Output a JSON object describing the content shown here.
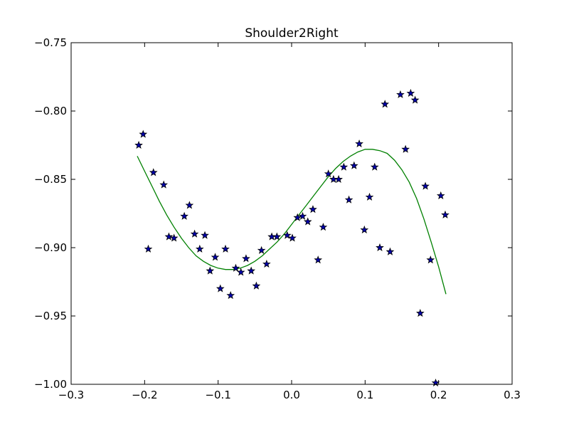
{
  "chart_data": {
    "type": "scatter",
    "title": "Shoulder2Right",
    "xlabel": "",
    "ylabel": "",
    "xlim": [
      -0.3,
      0.3
    ],
    "ylim": [
      -1.0,
      -0.75
    ],
    "xticks": [
      -0.3,
      -0.2,
      -0.1,
      0.0,
      0.1,
      0.2,
      0.3
    ],
    "yticks": [
      -1.0,
      -0.95,
      -0.9,
      -0.85,
      -0.8,
      -0.75
    ],
    "xtick_labels": [
      "−0.3",
      "−0.2",
      "−0.1",
      "0.0",
      "0.1",
      "0.2",
      "0.3"
    ],
    "ytick_labels": [
      "−1.00",
      "−0.95",
      "−0.90",
      "−0.85",
      "−0.80",
      "−0.75"
    ],
    "grid": false,
    "legend": "none",
    "series": [
      {
        "kind": "scatter",
        "marker": "star",
        "color": "#0000aa",
        "edge_color": "#000000",
        "points": [
          [
            -0.208,
            -0.825
          ],
          [
            -0.202,
            -0.817
          ],
          [
            -0.195,
            -0.901
          ],
          [
            -0.188,
            -0.845
          ],
          [
            -0.174,
            -0.854
          ],
          [
            -0.167,
            -0.892
          ],
          [
            -0.16,
            -0.893
          ],
          [
            -0.146,
            -0.877
          ],
          [
            -0.139,
            -0.869
          ],
          [
            -0.132,
            -0.89
          ],
          [
            -0.125,
            -0.901
          ],
          [
            -0.118,
            -0.891
          ],
          [
            -0.111,
            -0.917
          ],
          [
            -0.104,
            -0.907
          ],
          [
            -0.097,
            -0.93
          ],
          [
            -0.09,
            -0.901
          ],
          [
            -0.083,
            -0.935
          ],
          [
            -0.076,
            -0.915
          ],
          [
            -0.069,
            -0.918
          ],
          [
            -0.062,
            -0.908
          ],
          [
            -0.055,
            -0.917
          ],
          [
            -0.048,
            -0.928
          ],
          [
            -0.041,
            -0.902
          ],
          [
            -0.034,
            -0.912
          ],
          [
            -0.027,
            -0.892
          ],
          [
            -0.02,
            -0.892
          ],
          [
            -0.006,
            -0.891
          ],
          [
            0.001,
            -0.893
          ],
          [
            0.008,
            -0.878
          ],
          [
            0.015,
            -0.877
          ],
          [
            0.022,
            -0.881
          ],
          [
            0.029,
            -0.872
          ],
          [
            0.036,
            -0.909
          ],
          [
            0.043,
            -0.885
          ],
          [
            0.05,
            -0.846
          ],
          [
            0.057,
            -0.85
          ],
          [
            0.064,
            -0.85
          ],
          [
            0.071,
            -0.841
          ],
          [
            0.078,
            -0.865
          ],
          [
            0.085,
            -0.84
          ],
          [
            0.092,
            -0.824
          ],
          [
            0.099,
            -0.887
          ],
          [
            0.106,
            -0.863
          ],
          [
            0.113,
            -0.841
          ],
          [
            0.12,
            -0.9
          ],
          [
            0.127,
            -0.795
          ],
          [
            0.134,
            -0.903
          ],
          [
            0.148,
            -0.788
          ],
          [
            0.155,
            -0.828
          ],
          [
            0.162,
            -0.787
          ],
          [
            0.168,
            -0.792
          ],
          [
            0.175,
            -0.948
          ],
          [
            0.182,
            -0.855
          ],
          [
            0.189,
            -0.909
          ],
          [
            0.196,
            -0.999
          ],
          [
            0.203,
            -0.862
          ],
          [
            0.209,
            -0.876
          ]
        ]
      },
      {
        "kind": "line",
        "color": "#008000",
        "x": [
          -0.21,
          -0.2,
          -0.19,
          -0.18,
          -0.17,
          -0.16,
          -0.15,
          -0.14,
          -0.13,
          -0.12,
          -0.11,
          -0.1,
          -0.09,
          -0.08,
          -0.07,
          -0.06,
          -0.05,
          -0.04,
          -0.03,
          -0.02,
          -0.01,
          0.0,
          0.01,
          0.02,
          0.03,
          0.04,
          0.05,
          0.06,
          0.07,
          0.08,
          0.09,
          0.1,
          0.11,
          0.12,
          0.13,
          0.14,
          0.15,
          0.16,
          0.17,
          0.18,
          0.19,
          0.2,
          0.21
        ],
        "y": [
          -0.833,
          -0.844,
          -0.855,
          -0.866,
          -0.876,
          -0.885,
          -0.893,
          -0.9,
          -0.906,
          -0.91,
          -0.913,
          -0.915,
          -0.916,
          -0.916,
          -0.915,
          -0.913,
          -0.91,
          -0.906,
          -0.901,
          -0.896,
          -0.89,
          -0.883,
          -0.876,
          -0.869,
          -0.862,
          -0.855,
          -0.848,
          -0.842,
          -0.837,
          -0.833,
          -0.83,
          -0.828,
          -0.828,
          -0.829,
          -0.831,
          -0.836,
          -0.843,
          -0.852,
          -0.864,
          -0.879,
          -0.896,
          -0.914,
          -0.934
        ]
      }
    ]
  }
}
